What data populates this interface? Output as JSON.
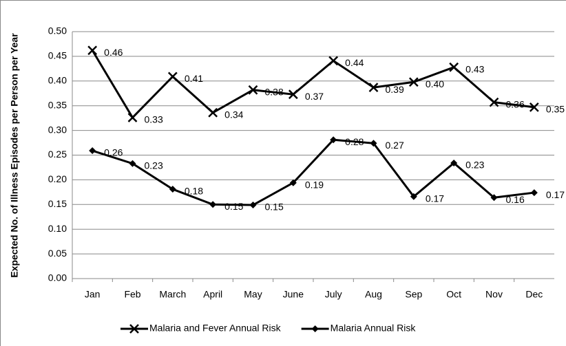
{
  "chart_data": {
    "type": "line",
    "categories": [
      "Jan",
      "Feb",
      "March",
      "April",
      "May",
      "June",
      "July",
      "Aug",
      "Sep",
      "Oct",
      "Nov",
      "Dec"
    ],
    "y_label": "Expected No. of Illness Episodes per Person per Year",
    "series": [
      {
        "name": "Malaria and Fever Annual Risk",
        "color": "#000000",
        "marker": "x",
        "values": [
          0.462,
          0.326,
          0.409,
          0.336,
          0.382,
          0.373,
          0.441,
          0.387,
          0.398,
          0.428,
          0.357,
          0.347
        ],
        "value_labels": [
          "0.46",
          "0.33",
          "0.41",
          "0.34",
          "0.38",
          "0.37",
          "0.44",
          "0.39",
          "0.40",
          "0.43",
          "0.36",
          "0.35"
        ]
      },
      {
        "name": "Malaria Annual Risk",
        "color": "#000000",
        "marker": "diamond",
        "values": [
          0.259,
          0.233,
          0.181,
          0.15,
          0.149,
          0.194,
          0.281,
          0.274,
          0.166,
          0.234,
          0.164,
          0.174
        ],
        "value_labels": [
          "0.26",
          "0.23",
          "0.18",
          "0.15",
          "0.15",
          "0.19",
          "0.28",
          "0.27",
          "0.17",
          "0.23",
          "0.16",
          "0.17"
        ]
      }
    ],
    "ylim": [
      0,
      0.5
    ],
    "yticks": [
      {
        "value": 0,
        "label": "0.00"
      },
      {
        "value": 0.05,
        "label": "0.05"
      },
      {
        "value": 0.1,
        "label": "0.10"
      },
      {
        "value": 0.15,
        "label": "0.15"
      },
      {
        "value": 0.2,
        "label": "0.20"
      },
      {
        "value": 0.25,
        "label": "0.25"
      },
      {
        "value": 0.3,
        "label": "0.30"
      },
      {
        "value": 0.35,
        "label": "0.35"
      },
      {
        "value": 0.4,
        "label": "0.40"
      },
      {
        "value": 0.45,
        "label": "0.45"
      },
      {
        "value": 0.5,
        "label": "0.50"
      }
    ],
    "grid": true,
    "legend": "bottom"
  }
}
